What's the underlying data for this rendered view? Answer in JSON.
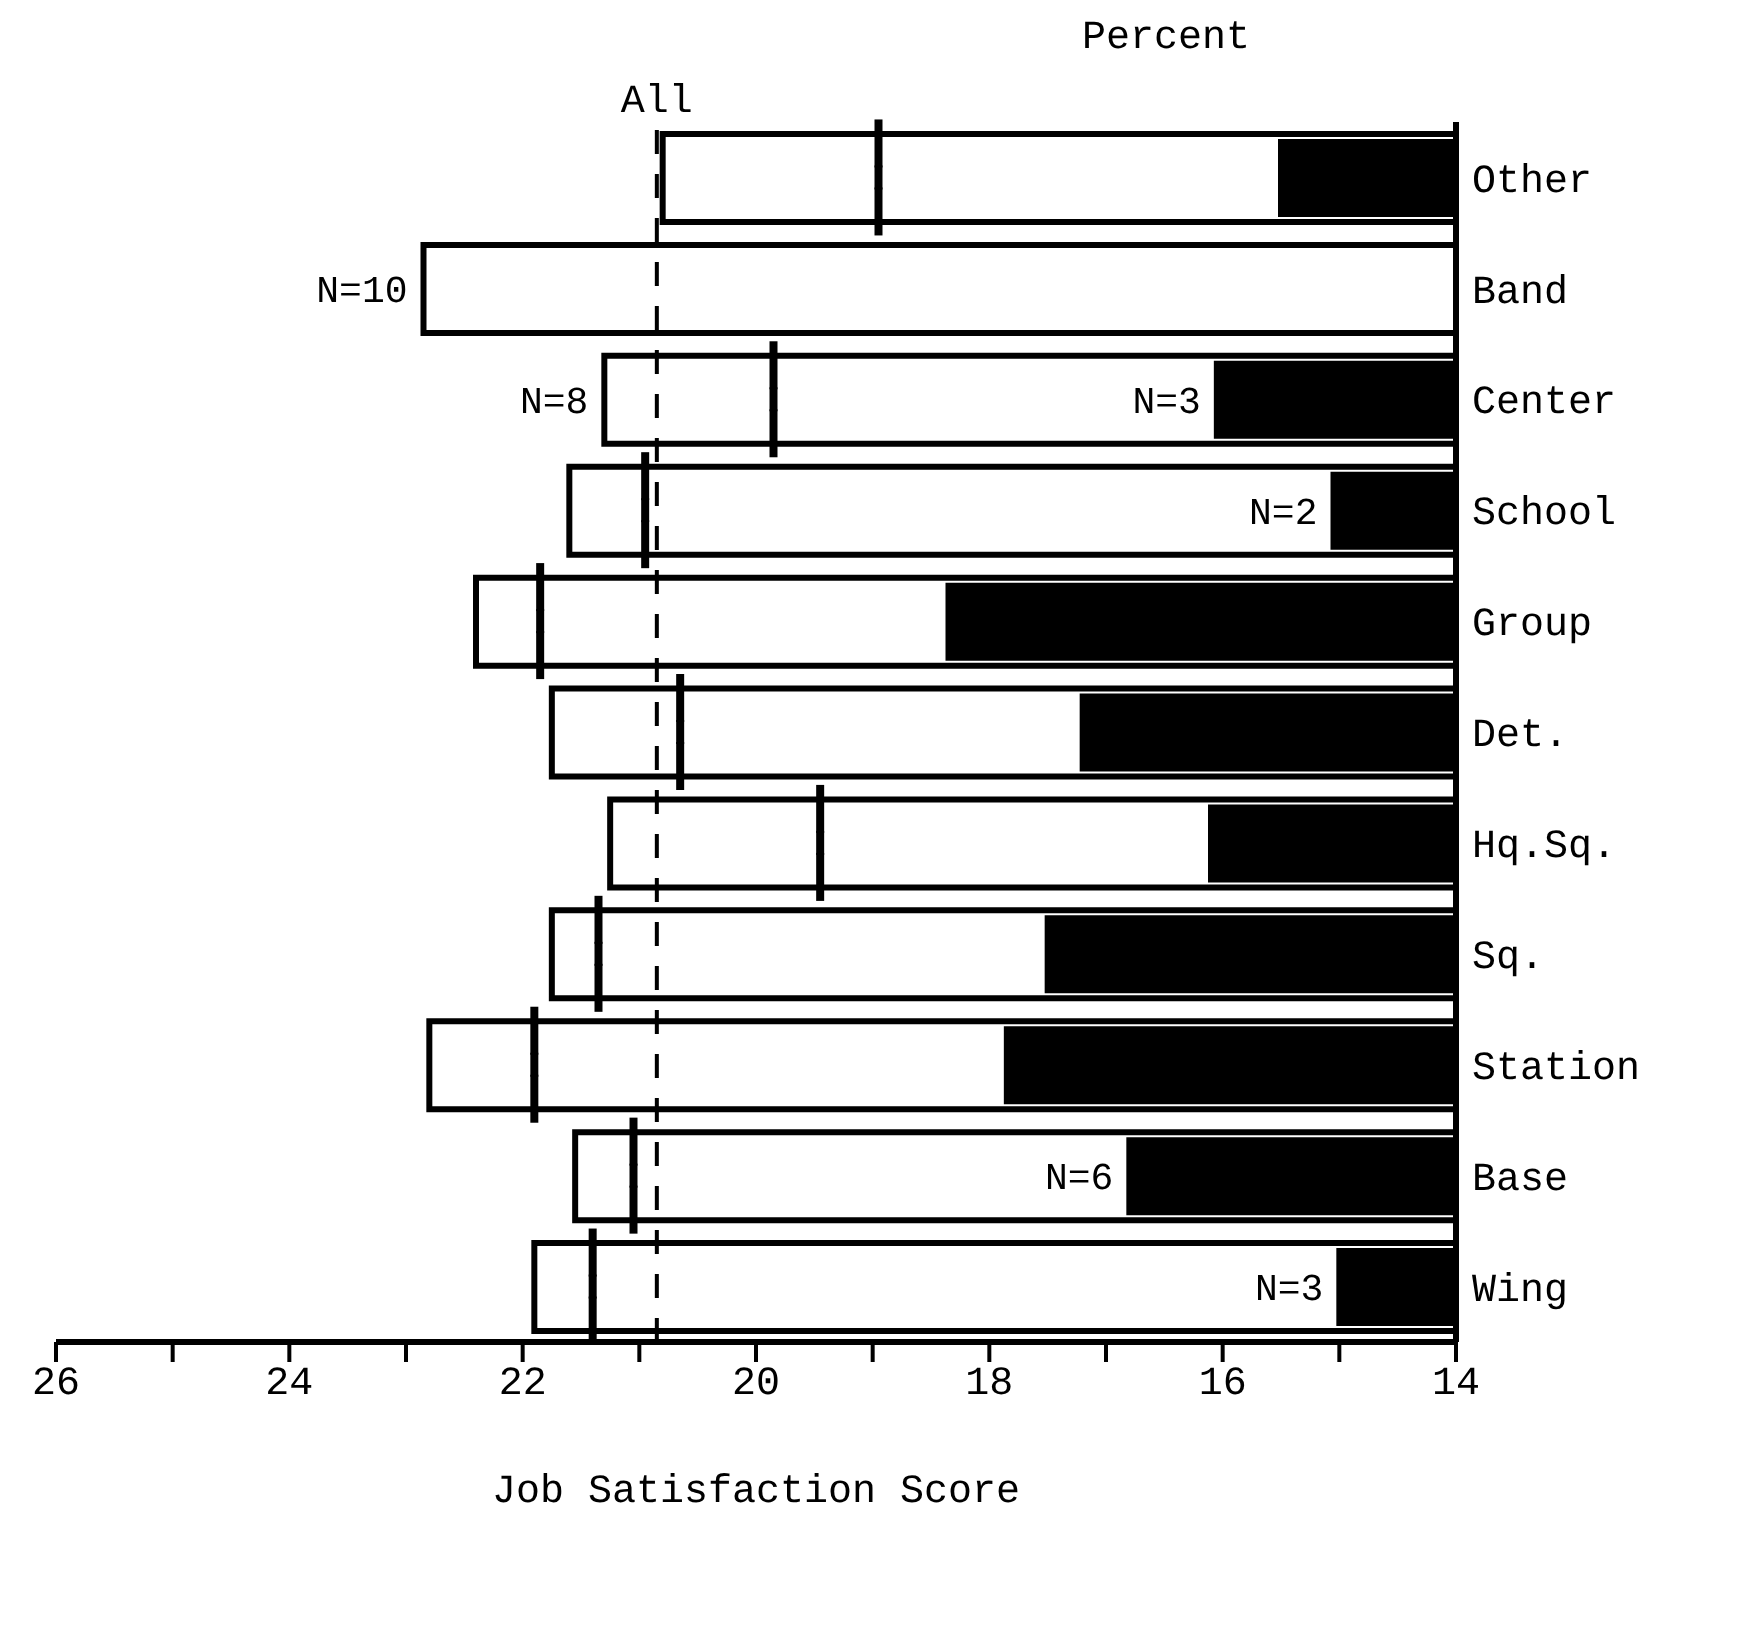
{
  "chart_data": {
    "type": "bar",
    "orientation": "horizontal",
    "title": "Percent",
    "xlabel": "Job Satisfaction Score",
    "categories": [
      "Other",
      "Band",
      "Center",
      "School",
      "Group",
      "Det.",
      "Hq.Sq.",
      "Sq.",
      "Station",
      "Base",
      "Wing"
    ],
    "series": [
      {
        "type": "bar",
        "color": "#ffffff",
        "values": [
          20.8,
          22.85,
          21.3,
          21.6,
          22.4,
          21.75,
          21.25,
          21.75,
          22.8,
          21.55,
          21.9
        ]
      },
      {
        "type": "bar",
        "color": "#000000",
        "values": [
          15.5,
          null,
          16.05,
          15.05,
          18.35,
          17.2,
          16.1,
          17.5,
          17.85,
          16.8,
          15.0
        ]
      },
      {
        "type": "scatter",
        "color": "#000000",
        "values": [
          18.95,
          null,
          19.85,
          20.95,
          21.85,
          20.65,
          19.45,
          21.35,
          21.9,
          21.05,
          21.4
        ]
      }
    ],
    "xlim": [
      26,
      14
    ],
    "xticks": [
      26,
      {
        "value": 25,
        "label": null
      },
      24,
      {
        "value": 23,
        "label": null
      },
      22,
      {
        "value": 21,
        "label": null
      },
      20,
      {
        "value": 19,
        "label": null
      },
      18,
      {
        "value": 17,
        "label": null
      },
      16,
      {
        "value": 15,
        "label": null
      },
      14
    ],
    "ref_lines": [
      {
        "axis": "x",
        "value": 20.85,
        "label": "All",
        "line_style": "dashed",
        "color": "#000000"
      }
    ],
    "annotations": [
      {
        "text": "N=10",
        "x": 22.85,
        "y": "Band"
      },
      {
        "text": "N=8",
        "x": 21.3,
        "y": "Center"
      },
      {
        "text": "N=3",
        "x": 16.05,
        "y": "Center"
      },
      {
        "text": "N=2",
        "x": 15.05,
        "y": "School"
      },
      {
        "text": "N=6",
        "x": 16.8,
        "y": "Base"
      },
      {
        "text": "N=3",
        "x": 15.0,
        "y": "Wing"
      }
    ],
    "grid": false,
    "legend": false
  }
}
